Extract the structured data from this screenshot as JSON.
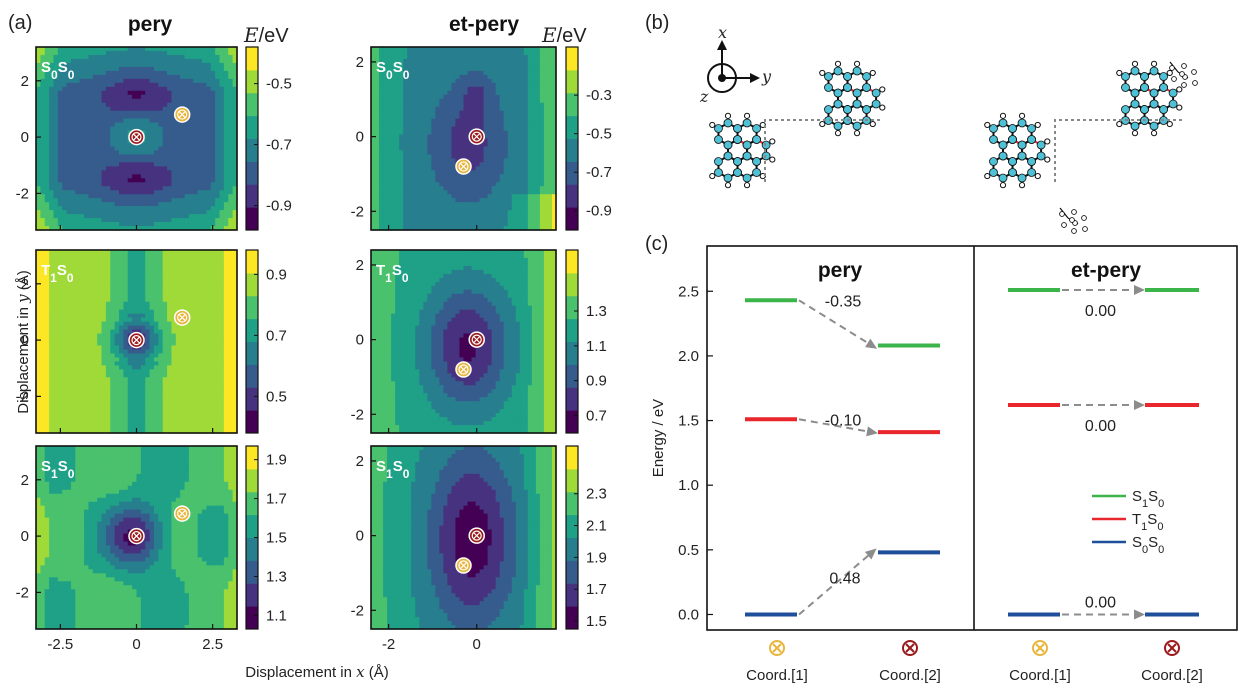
{
  "panel_labels": {
    "a": "(a)",
    "b": "(b)",
    "c": "(c)"
  },
  "columns": [
    {
      "title": "pery",
      "xlim": [
        -3.3,
        3.3
      ],
      "xticks": [
        "-2.5",
        "0",
        "2.5"
      ],
      "xtick_vals": [
        -2.5,
        0,
        2.5
      ]
    },
    {
      "title": "et-pery",
      "xlim": [
        -2.4,
        1.8
      ],
      "xticks": [
        "-2",
        "0"
      ],
      "xtick_vals": [
        -2,
        0
      ]
    }
  ],
  "energy_unit": {
    "italic": "E",
    "rest": "/eV"
  },
  "state_labels": [
    {
      "main": "S",
      "sub1": "0",
      "main2": "S",
      "sub2": "0"
    },
    {
      "main": "T",
      "sub1": "1",
      "main2": "S",
      "sub2": "0"
    },
    {
      "main": "S",
      "sub1": "1",
      "main2": "S",
      "sub2": "0"
    }
  ],
  "map_panels": [
    {
      "col": 0,
      "row": 0,
      "ylim": [
        -3.3,
        3.2
      ],
      "yticks": [
        "2",
        "0",
        "-2"
      ],
      "ytick_vals": [
        2,
        0,
        -2
      ],
      "cbar_ticks": [
        "-0.5",
        "-0.7",
        "-0.9"
      ],
      "cbar_tick_vals": [
        -0.5,
        -0.7,
        -0.9
      ],
      "cbar_range": [
        -0.98,
        -0.38
      ],
      "marker_coord1": [
        1.5,
        0.8
      ],
      "marker_coord2": [
        0,
        0
      ]
    },
    {
      "col": 1,
      "row": 0,
      "ylim": [
        -2.5,
        2.4
      ],
      "yticks": [
        "2",
        "0",
        "-2"
      ],
      "ytick_vals": [
        2,
        0,
        -2
      ],
      "cbar_ticks": [
        "-0.3",
        "-0.5",
        "-0.7",
        "-0.9"
      ],
      "cbar_tick_vals": [
        -0.3,
        -0.5,
        -0.7,
        -0.9
      ],
      "cbar_range": [
        -1.0,
        -0.05
      ],
      "marker_coord1": [
        -0.3,
        -0.8
      ],
      "marker_coord2": [
        0,
        0
      ]
    },
    {
      "col": 0,
      "row": 1,
      "ylim": [
        -3.3,
        3.2
      ],
      "yticks": [
        "2",
        "0",
        "-2"
      ],
      "ytick_vals": [
        2,
        0,
        -2
      ],
      "cbar_ticks": [
        "0.9",
        "0.7",
        "0.5"
      ],
      "cbar_tick_vals": [
        0.9,
        0.7,
        0.5
      ],
      "cbar_range": [
        0.38,
        0.98
      ],
      "marker_coord1": [
        1.5,
        0.8
      ],
      "marker_coord2": [
        0,
        0
      ]
    },
    {
      "col": 1,
      "row": 1,
      "ylim": [
        -2.5,
        2.4
      ],
      "yticks": [
        "2",
        "0",
        "-2"
      ],
      "ytick_vals": [
        2,
        0,
        -2
      ],
      "cbar_ticks": [
        "1.3",
        "1.1",
        "0.9",
        "0.7"
      ],
      "cbar_tick_vals": [
        1.3,
        1.1,
        0.9,
        0.7
      ],
      "cbar_range": [
        0.6,
        1.65
      ],
      "marker_coord1": [
        -0.3,
        -0.8
      ],
      "marker_coord2": [
        0,
        0
      ]
    },
    {
      "col": 0,
      "row": 2,
      "ylim": [
        -3.3,
        3.2
      ],
      "yticks": [
        "2",
        "0",
        "-2"
      ],
      "ytick_vals": [
        2,
        0,
        -2
      ],
      "cbar_ticks": [
        "1.9",
        "1.7",
        "1.5",
        "1.3",
        "1.1"
      ],
      "cbar_tick_vals": [
        1.9,
        1.7,
        1.5,
        1.3,
        1.1
      ],
      "cbar_range": [
        1.03,
        1.97
      ],
      "marker_coord1": [
        1.5,
        0.8
      ],
      "marker_coord2": [
        0,
        0
      ]
    },
    {
      "col": 1,
      "row": 2,
      "ylim": [
        -2.5,
        2.4
      ],
      "yticks": [
        "2",
        "0",
        "-2"
      ],
      "ytick_vals": [
        2,
        0,
        -2
      ],
      "cbar_ticks": [
        "2.3",
        "2.1",
        "1.9",
        "1.7",
        "1.5"
      ],
      "cbar_tick_vals": [
        2.3,
        2.1,
        1.9,
        1.7,
        1.5
      ],
      "cbar_range": [
        1.45,
        2.6
      ],
      "marker_coord1": [
        -0.3,
        -0.8
      ],
      "marker_coord2": [
        0,
        0
      ]
    }
  ],
  "xlabel": {
    "pre": "Displacement in ",
    "italic": "x",
    "post": " (Å)"
  },
  "ylabel": {
    "pre": "Displacement in ",
    "italic": "y",
    "post": " (Å)"
  },
  "molecule_axes": {
    "x": "x",
    "y": "y",
    "z": "z"
  },
  "chart_data": {
    "type": "line",
    "ylabel": "Energy / eV",
    "ylim": [
      -0.12,
      2.85
    ],
    "yticks": [
      "0.0",
      "0.5",
      "1.0",
      "1.5",
      "2.0",
      "2.5"
    ],
    "ytick_vals": [
      0,
      0.5,
      1.0,
      1.5,
      2.0,
      2.5
    ],
    "categories": [
      "Coord.[1]",
      "Coord.[2]"
    ],
    "panels": [
      {
        "title": "pery",
        "series": [
          {
            "name": "S1S0",
            "values": [
              2.43,
              2.08
            ],
            "diff": "-0.35"
          },
          {
            "name": "T1S0",
            "values": [
              1.51,
              1.41
            ],
            "diff": "-0.10"
          },
          {
            "name": "S0S0",
            "values": [
              0.0,
              0.48
            ],
            "diff": "0.48"
          }
        ]
      },
      {
        "title": "et-pery",
        "series": [
          {
            "name": "S1S0",
            "values": [
              2.51,
              2.51
            ],
            "diff": "0.00"
          },
          {
            "name": "T1S0",
            "values": [
              1.62,
              1.62
            ],
            "diff": "0.00"
          },
          {
            "name": "S0S0",
            "values": [
              0.0,
              0.0
            ],
            "diff": "0.00"
          }
        ]
      }
    ],
    "legend": [
      {
        "main": "S",
        "sub1": "1",
        "main2": "S",
        "sub2": "0",
        "color": "#3bb54a"
      },
      {
        "main": "T",
        "sub1": "1",
        "main2": "S",
        "sub2": "0",
        "color": "#e8262b"
      },
      {
        "main": "S",
        "sub1": "0",
        "main2": "S",
        "sub2": "0",
        "color": "#1f4e9a"
      }
    ],
    "legend_position": "lower-right",
    "series_colors": {
      "S1S0": "#3bb54a",
      "T1S0": "#e8262b",
      "S0S0": "#1f4e9a"
    },
    "arrow_color": "#8c8c8c"
  },
  "colors": {
    "marker1": "#e9b53c",
    "marker2": "#9b1b1d",
    "viridis": [
      "#440154",
      "#46327e",
      "#365c8d",
      "#277f8e",
      "#1fa187",
      "#4ac16d",
      "#a0da39",
      "#fde725"
    ],
    "atom_c": "#4fc1d6",
    "bond_red": "#e8262b"
  }
}
